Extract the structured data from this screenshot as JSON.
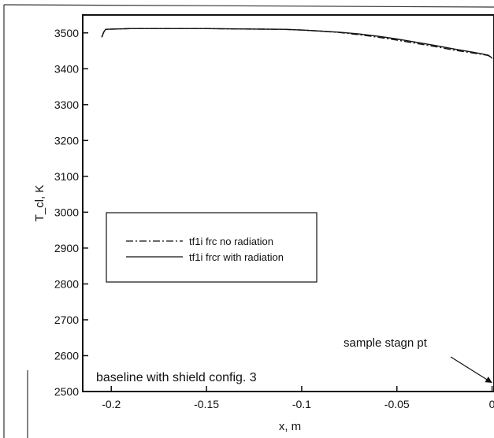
{
  "chart_data": {
    "type": "line",
    "xlabel": "x, m",
    "ylabel": "T_cl, K",
    "xlim": [
      -0.215,
      0.001
    ],
    "ylim": [
      2500,
      3550
    ],
    "x_ticks": [
      -0.2,
      -0.15,
      -0.1,
      -0.05,
      0
    ],
    "x_tick_labels": [
      "-0.2",
      "-0.15",
      "-0.1",
      "-0.05",
      "0"
    ],
    "y_ticks": [
      2500,
      2600,
      2700,
      2800,
      2900,
      3000,
      3100,
      3200,
      3300,
      3400,
      3500
    ],
    "y_tick_labels": [
      "2500",
      "2600",
      "2700",
      "2800",
      "2900",
      "3000",
      "3100",
      "3200",
      "3300",
      "3400",
      "3500"
    ],
    "grid": false,
    "legend_position": "middle-left",
    "series": [
      {
        "name": "tf1i frc no radiation",
        "style": "dash-dot",
        "color": "#111111",
        "x": [
          -0.205,
          -0.204,
          -0.203,
          -0.19,
          -0.17,
          -0.15,
          -0.13,
          -0.11,
          -0.1,
          -0.09,
          -0.08,
          -0.07,
          -0.06,
          -0.05,
          -0.04,
          -0.03,
          -0.02,
          -0.01,
          -0.005,
          -0.002,
          0
        ],
        "y": [
          3488,
          3502,
          3510,
          3512,
          3512,
          3512,
          3511,
          3510,
          3508,
          3505,
          3501,
          3495,
          3488,
          3480,
          3471,
          3462,
          3452,
          3444,
          3440,
          3437,
          3428
        ]
      },
      {
        "name": "tf1i frcr with radiation",
        "style": "solid",
        "color": "#111111",
        "x": [
          -0.205,
          -0.204,
          -0.203,
          -0.19,
          -0.17,
          -0.15,
          -0.13,
          -0.11,
          -0.1,
          -0.09,
          -0.08,
          -0.07,
          -0.06,
          -0.05,
          -0.04,
          -0.03,
          -0.02,
          -0.01,
          -0.005,
          -0.002,
          0
        ],
        "y": [
          3488,
          3502,
          3510,
          3512,
          3512,
          3512,
          3511,
          3510,
          3508,
          3505,
          3502,
          3497,
          3491,
          3483,
          3474,
          3465,
          3455,
          3446,
          3441,
          3438,
          3430
        ]
      }
    ],
    "annotations": [
      {
        "text": "sample stagn pt",
        "arrow_to": {
          "x": 0,
          "y": 2525
        }
      },
      {
        "text": "baseline with shield config. 3"
      }
    ]
  }
}
